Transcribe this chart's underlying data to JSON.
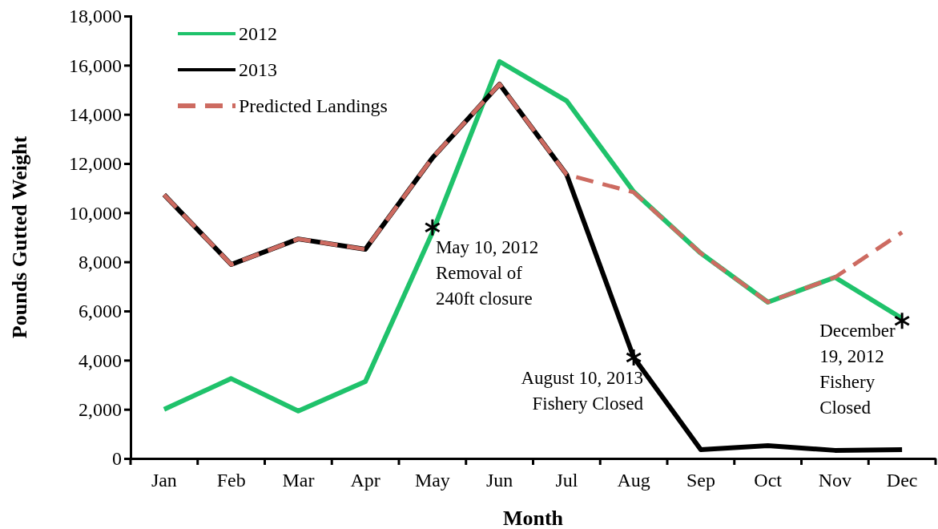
{
  "chart_data": {
    "type": "line",
    "xlabel": "Month",
    "ylabel": "Pounds Gutted Weight",
    "categories": [
      "Jan",
      "Feb",
      "Mar",
      "Apr",
      "May",
      "Jun",
      "Jul",
      "Aug",
      "Sep",
      "Oct",
      "Nov",
      "Dec"
    ],
    "series": [
      {
        "name": "2012",
        "color": "#1fc26b",
        "line_style": "solid",
        "values": [
          2000,
          3250,
          1930,
          3130,
          9200,
          16150,
          14550,
          10850,
          8350,
          6360,
          7370,
          5700
        ]
      },
      {
        "name": "2013",
        "color": "#000000",
        "line_style": "solid",
        "values": [
          10730,
          7890,
          8930,
          8510,
          12230,
          15230,
          11550,
          4110,
          360,
          520,
          330,
          360
        ]
      },
      {
        "name": "Predicted Landings",
        "color": "#cd6b61",
        "line_style": "dashed",
        "values": [
          10730,
          7890,
          8930,
          8510,
          12230,
          15230,
          11550,
          10830,
          8350,
          6360,
          7370,
          9200
        ]
      }
    ],
    "ylim": [
      0,
      18000
    ],
    "yticks": [
      {
        "value": 0,
        "label": "0"
      },
      {
        "value": 2000,
        "label": "2,000"
      },
      {
        "value": 4000,
        "label": "4,000"
      },
      {
        "value": 6000,
        "label": "6,000"
      },
      {
        "value": 8000,
        "label": "8,000"
      },
      {
        "value": 10000,
        "label": "10,000"
      },
      {
        "value": 12000,
        "label": "12,000"
      },
      {
        "value": 14000,
        "label": "14,000"
      },
      {
        "value": 16000,
        "label": "16,000"
      },
      {
        "value": 18000,
        "label": "18,000"
      }
    ],
    "annotations": [
      {
        "text": "May 10, 2012\nRemoval of\n240ft closure",
        "x": "May",
        "y": 9400
      },
      {
        "text": "August 10, 2013\nFishery Closed",
        "x": "Aug",
        "y": 4110
      },
      {
        "text": "December\n19, 2012\nFishery\nClosed",
        "x": "Dec",
        "y": 5600
      }
    ],
    "grid": false,
    "legend": "top left",
    "marker": "none"
  }
}
